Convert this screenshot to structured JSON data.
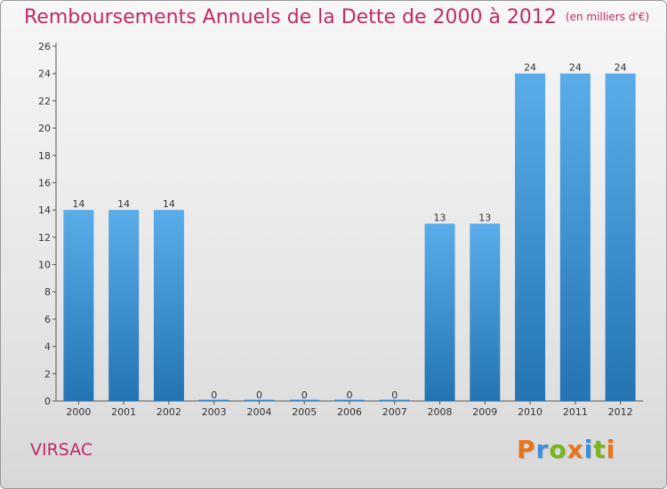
{
  "header": {
    "title": "Remboursements Annuels de la Dette de 2000 à 2012",
    "subtitle": "(en milliers d'€)"
  },
  "footer": {
    "commune": "VIRSAC",
    "brand": "Proxiti"
  },
  "colors": {
    "title": "#c0296b",
    "bar_top": "#5aade9",
    "bar_bottom": "#2474b4",
    "brand_letters": [
      "#e8751a",
      "#3d8fd6",
      "#7ab51d",
      "#e8751a",
      "#3d8fd6",
      "#7ab51d",
      "#e8751a"
    ]
  },
  "chart_data": {
    "type": "bar",
    "title": "Remboursements Annuels de la Dette de 2000 à 2012",
    "subtitle": "(en milliers d'€)",
    "categories": [
      "2000",
      "2001",
      "2002",
      "2003",
      "2004",
      "2005",
      "2006",
      "2007",
      "2008",
      "2009",
      "2010",
      "2011",
      "2012"
    ],
    "values": [
      14,
      14,
      14,
      0,
      0,
      0,
      0,
      0,
      13,
      13,
      24,
      24,
      24
    ],
    "ylim": [
      0,
      26
    ],
    "yticks": [
      0,
      2,
      4,
      6,
      8,
      10,
      12,
      14,
      16,
      18,
      20,
      22,
      24,
      26
    ],
    "xlabel": "",
    "ylabel": "",
    "grid": false,
    "data_labels": true
  }
}
